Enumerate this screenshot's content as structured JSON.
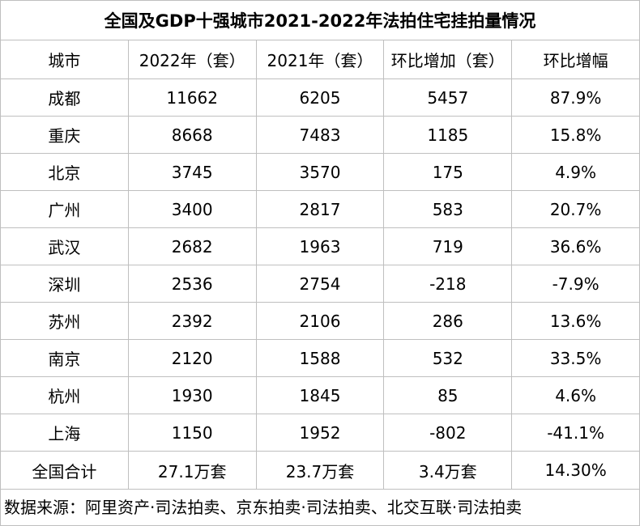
{
  "chart_data": {
    "type": "table",
    "title": "全国及GDP十强城市2021-2022年法拍住宅挂拍量情况",
    "columns": [
      "城市",
      "2022年（套）",
      "2021年（套）",
      "环比增加（套）",
      "环比增幅"
    ],
    "rows": [
      [
        "成都",
        "11662",
        "6205",
        "5457",
        "87.9%"
      ],
      [
        "重庆",
        "8668",
        "7483",
        "1185",
        "15.8%"
      ],
      [
        "北京",
        "3745",
        "3570",
        "175",
        "4.9%"
      ],
      [
        "广州",
        "3400",
        "2817",
        "583",
        "20.7%"
      ],
      [
        "武汉",
        "2682",
        "1963",
        "719",
        "36.6%"
      ],
      [
        "深圳",
        "2536",
        "2754",
        "-218",
        "-7.9%"
      ],
      [
        "苏州",
        "2392",
        "2106",
        "286",
        "13.6%"
      ],
      [
        "南京",
        "2120",
        "1588",
        "532",
        "33.5%"
      ],
      [
        "杭州",
        "1930",
        "1845",
        "85",
        "4.6%"
      ],
      [
        "上海",
        "1150",
        "1952",
        "-802",
        "-41.1%"
      ]
    ],
    "total_row": [
      "全国合计",
      "27.1万套",
      "23.7万套",
      "3.4万套",
      "14.30%"
    ],
    "source": "数据来源：阿里资产·司法拍卖、京东拍卖·司法拍卖、北交互联·司法拍卖"
  }
}
